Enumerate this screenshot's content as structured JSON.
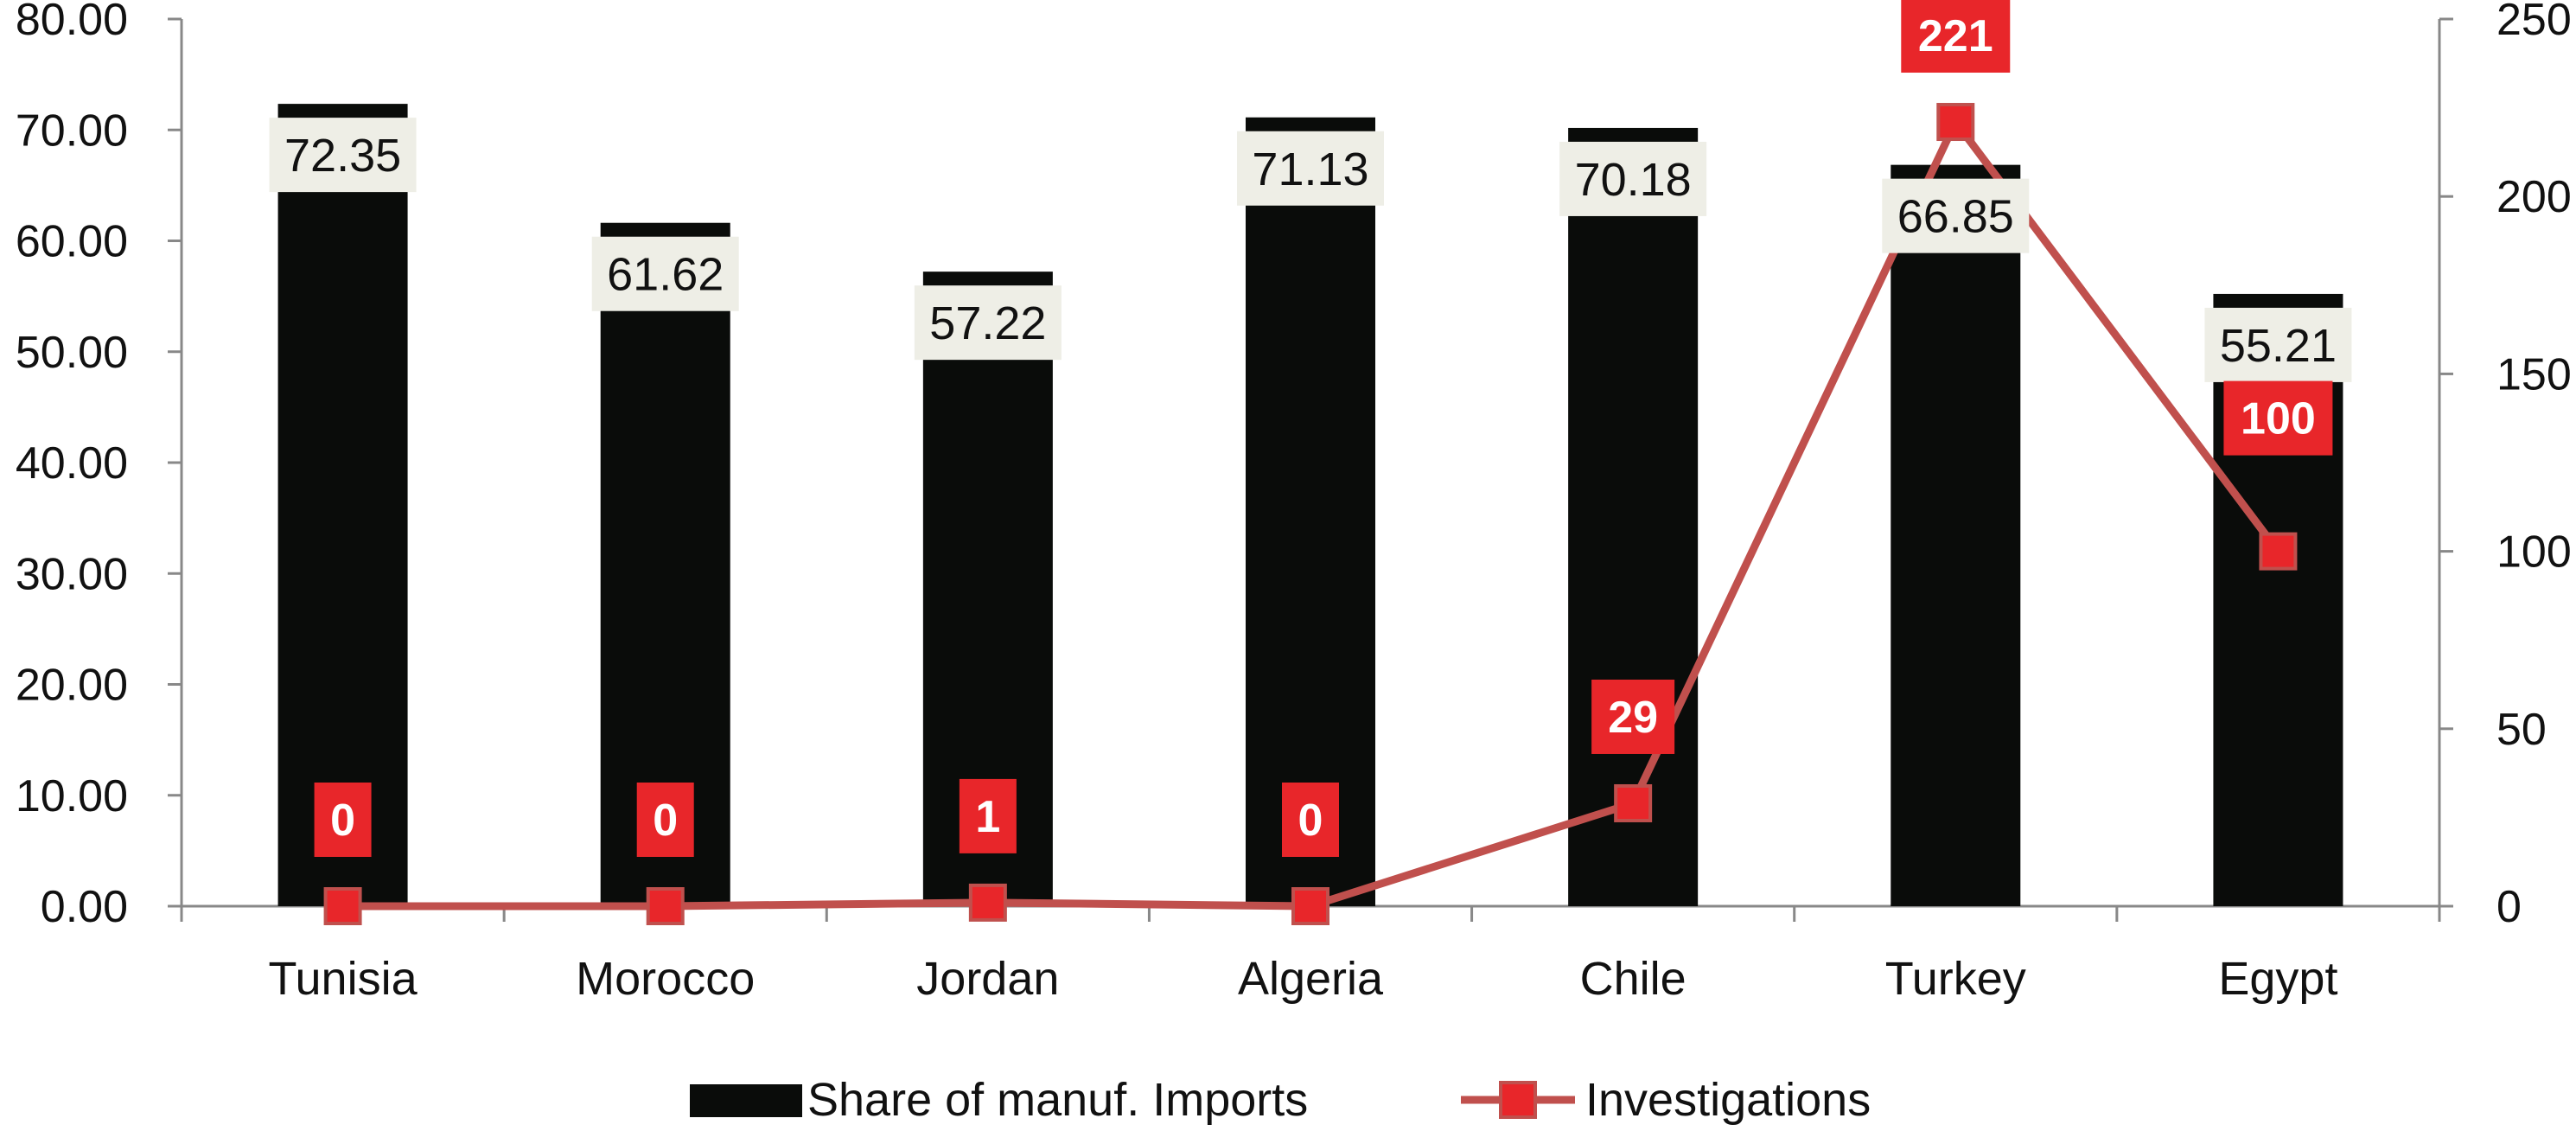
{
  "chart_data": {
    "type": "bar",
    "categories": [
      "Tunisia",
      "Morocco",
      "Jordan",
      "Algeria",
      "Chile",
      "Turkey",
      "Egypt"
    ],
    "series": [
      {
        "name": "Share of manuf. Imports",
        "type": "bar",
        "axis": "left",
        "color": "#0a0c0a",
        "values": [
          72.35,
          61.62,
          57.22,
          71.13,
          70.18,
          66.85,
          55.21
        ],
        "labels": [
          "72.35",
          "61.62",
          "57.22",
          "71.13",
          "70.18",
          "66.85",
          "55.21"
        ]
      },
      {
        "name": "Investigations",
        "type": "line",
        "axis": "right",
        "color": "#c0504d",
        "marker_color": "#e8262a",
        "values": [
          0,
          0,
          1,
          0,
          29,
          221,
          100
        ],
        "labels": [
          "0",
          "0",
          "1",
          "0",
          "29",
          "221",
          "100"
        ]
      }
    ],
    "y_left": {
      "min": 0,
      "max": 80,
      "ticks": [
        "0.00",
        "10.00",
        "20.00",
        "30.00",
        "40.00",
        "50.00",
        "60.00",
        "70.00",
        "80.00"
      ]
    },
    "y_right": {
      "min": 0,
      "max": 250,
      "ticks": [
        "0",
        "50",
        "100",
        "150",
        "200",
        "250"
      ]
    },
    "grid": false,
    "legend_position": "bottom",
    "bar_label_background": "#eeeee6",
    "line_label_background": "#e8262a"
  }
}
